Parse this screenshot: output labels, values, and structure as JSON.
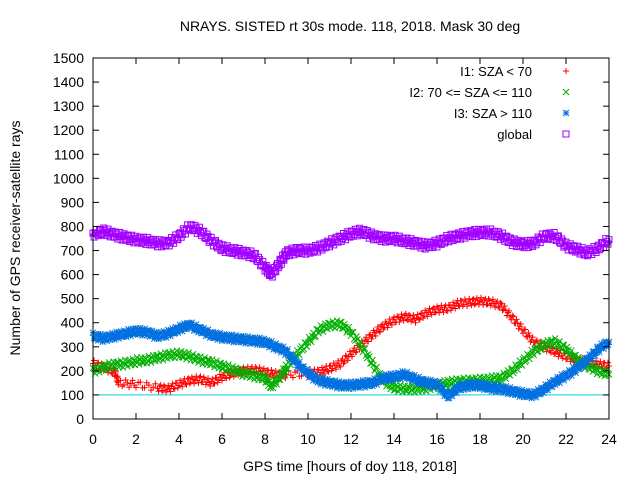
{
  "chart_data": {
    "type": "scatter",
    "title": "NRAYS. SISTED rt 30s mode. 118, 2018. Mask 30 deg",
    "xlabel": "GPS time [hours of doy 118, 2018]",
    "ylabel": "Number of GPS receiver-satellite rays",
    "xlim": [
      0,
      24
    ],
    "ylim": [
      0,
      1500
    ],
    "xticks": [
      "0",
      "2",
      "4",
      "6",
      "8",
      "10",
      "12",
      "14",
      "16",
      "18",
      "20",
      "22",
      "24"
    ],
    "yticks": [
      "0",
      "100",
      "200",
      "300",
      "400",
      "500",
      "600",
      "700",
      "800",
      "900",
      "1000",
      "1100",
      "1200",
      "1300",
      "1400",
      "1500"
    ],
    "threshold": {
      "y": 100,
      "color": "#00d0d8"
    },
    "legend_position": "top-right",
    "series": [
      {
        "name": "I1: SZA < 70",
        "marker": "+",
        "color": "#ff0000",
        "points": [
          [
            0,
            230
          ],
          [
            0.5,
            215
          ],
          [
            1,
            195
          ],
          [
            1.2,
            150
          ],
          [
            2,
            145
          ],
          [
            3,
            130
          ],
          [
            3.5,
            125
          ],
          [
            4,
            145
          ],
          [
            4.5,
            160
          ],
          [
            5,
            165
          ],
          [
            5.5,
            150
          ],
          [
            6,
            175
          ],
          [
            6.5,
            190
          ],
          [
            7,
            200
          ],
          [
            7.5,
            205
          ],
          [
            8,
            195
          ],
          [
            8.5,
            185
          ],
          [
            9,
            185
          ],
          [
            10,
            190
          ],
          [
            10.5,
            195
          ],
          [
            11,
            210
          ],
          [
            11.5,
            230
          ],
          [
            12,
            270
          ],
          [
            12.5,
            310
          ],
          [
            13,
            350
          ],
          [
            13.5,
            385
          ],
          [
            14,
            410
          ],
          [
            14.5,
            425
          ],
          [
            15,
            415
          ],
          [
            15.5,
            440
          ],
          [
            16,
            455
          ],
          [
            16.5,
            460
          ],
          [
            17,
            480
          ],
          [
            17.5,
            485
          ],
          [
            18,
            490
          ],
          [
            18.5,
            485
          ],
          [
            19,
            470
          ],
          [
            19.5,
            420
          ],
          [
            20,
            370
          ],
          [
            20.5,
            320
          ],
          [
            21,
            300
          ],
          [
            21.5,
            280
          ],
          [
            22,
            260
          ],
          [
            22.5,
            245
          ],
          [
            23,
            235
          ],
          [
            23.5,
            225
          ],
          [
            24,
            220
          ]
        ]
      },
      {
        "name": "I2: 70 <= SZA <= 110",
        "marker": "x",
        "color": "#00b000",
        "points": [
          [
            0,
            200
          ],
          [
            0.5,
            215
          ],
          [
            1,
            225
          ],
          [
            1.5,
            230
          ],
          [
            2,
            240
          ],
          [
            2.5,
            245
          ],
          [
            3,
            255
          ],
          [
            3.5,
            265
          ],
          [
            4,
            270
          ],
          [
            4.5,
            260
          ],
          [
            5,
            245
          ],
          [
            5.5,
            235
          ],
          [
            6,
            220
          ],
          [
            6.5,
            205
          ],
          [
            7,
            190
          ],
          [
            7.5,
            180
          ],
          [
            8,
            170
          ],
          [
            8.3,
            135
          ],
          [
            8.7,
            175
          ],
          [
            9,
            215
          ],
          [
            9.5,
            270
          ],
          [
            10,
            320
          ],
          [
            10.5,
            370
          ],
          [
            11,
            390
          ],
          [
            11.5,
            395
          ],
          [
            12,
            360
          ],
          [
            12.5,
            300
          ],
          [
            13,
            230
          ],
          [
            13.5,
            160
          ],
          [
            14,
            130
          ],
          [
            14.5,
            125
          ],
          [
            15,
            125
          ],
          [
            15.5,
            130
          ],
          [
            16,
            140
          ],
          [
            16.5,
            150
          ],
          [
            17,
            155
          ],
          [
            17.5,
            158
          ],
          [
            18,
            160
          ],
          [
            18.5,
            165
          ],
          [
            19,
            170
          ],
          [
            19.5,
            200
          ],
          [
            20,
            240
          ],
          [
            20.5,
            280
          ],
          [
            21,
            310
          ],
          [
            21.5,
            320
          ],
          [
            22,
            290
          ],
          [
            22.5,
            250
          ],
          [
            23,
            220
          ],
          [
            23.5,
            200
          ],
          [
            24,
            185
          ]
        ]
      },
      {
        "name": "I3: SZA > 110",
        "marker": "*",
        "color": "#0070e0",
        "points": [
          [
            0,
            345
          ],
          [
            0.5,
            335
          ],
          [
            1,
            345
          ],
          [
            1.5,
            355
          ],
          [
            2,
            365
          ],
          [
            2.5,
            360
          ],
          [
            3,
            345
          ],
          [
            3.5,
            355
          ],
          [
            4,
            375
          ],
          [
            4.5,
            390
          ],
          [
            5,
            370
          ],
          [
            5.5,
            350
          ],
          [
            6,
            340
          ],
          [
            6.5,
            335
          ],
          [
            7,
            330
          ],
          [
            7.5,
            325
          ],
          [
            8,
            320
          ],
          [
            8.5,
            300
          ],
          [
            9,
            280
          ],
          [
            9.5,
            230
          ],
          [
            10,
            190
          ],
          [
            10.5,
            160
          ],
          [
            11,
            150
          ],
          [
            11.5,
            140
          ],
          [
            12,
            140
          ],
          [
            12.5,
            145
          ],
          [
            13,
            150
          ],
          [
            13.5,
            170
          ],
          [
            14,
            175
          ],
          [
            14.5,
            185
          ],
          [
            15,
            165
          ],
          [
            15.5,
            150
          ],
          [
            16,
            145
          ],
          [
            16.5,
            95
          ],
          [
            17,
            130
          ],
          [
            17.5,
            140
          ],
          [
            18,
            140
          ],
          [
            18.5,
            130
          ],
          [
            19,
            125
          ],
          [
            19.5,
            115
          ],
          [
            20,
            105
          ],
          [
            20.5,
            100
          ],
          [
            21,
            125
          ],
          [
            21.5,
            155
          ],
          [
            22,
            180
          ],
          [
            22.5,
            210
          ],
          [
            23,
            245
          ],
          [
            23.5,
            290
          ],
          [
            24,
            320
          ]
        ]
      },
      {
        "name": "global",
        "marker": "square",
        "color": "#a000ff",
        "points": [
          [
            0,
            770
          ],
          [
            0.5,
            780
          ],
          [
            1,
            765
          ],
          [
            1.5,
            755
          ],
          [
            2,
            745
          ],
          [
            2.5,
            740
          ],
          [
            3,
            730
          ],
          [
            3.5,
            730
          ],
          [
            4,
            760
          ],
          [
            4.5,
            800
          ],
          [
            5,
            780
          ],
          [
            5.5,
            740
          ],
          [
            6,
            710
          ],
          [
            6.5,
            700
          ],
          [
            7,
            690
          ],
          [
            7.5,
            680
          ],
          [
            8,
            630
          ],
          [
            8.3,
            600
          ],
          [
            8.7,
            650
          ],
          [
            9,
            690
          ],
          [
            9.5,
            700
          ],
          [
            10,
            700
          ],
          [
            10.5,
            710
          ],
          [
            11,
            730
          ],
          [
            11.5,
            750
          ],
          [
            12,
            770
          ],
          [
            12.5,
            780
          ],
          [
            13,
            760
          ],
          [
            13.5,
            750
          ],
          [
            14,
            750
          ],
          [
            14.5,
            740
          ],
          [
            15,
            730
          ],
          [
            15.5,
            720
          ],
          [
            16,
            730
          ],
          [
            16.5,
            750
          ],
          [
            17,
            760
          ],
          [
            17.5,
            770
          ],
          [
            18,
            775
          ],
          [
            18.5,
            775
          ],
          [
            19,
            760
          ],
          [
            19.5,
            735
          ],
          [
            20,
            725
          ],
          [
            20.5,
            730
          ],
          [
            21,
            760
          ],
          [
            21.5,
            760
          ],
          [
            22,
            720
          ],
          [
            22.5,
            705
          ],
          [
            23,
            690
          ],
          [
            23.5,
            710
          ],
          [
            24,
            745
          ]
        ]
      }
    ]
  }
}
